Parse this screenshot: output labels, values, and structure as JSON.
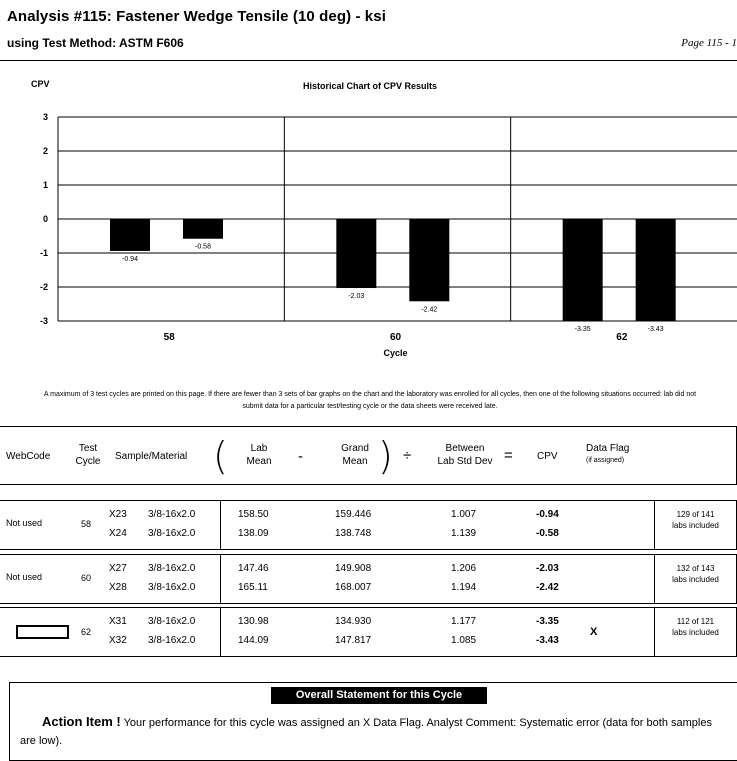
{
  "header": {
    "title": "Analysis #115: Fastener Wedge Tensile (10 deg) - ksi",
    "method": "using Test Method: ASTM F606",
    "page": "Page 115 - 1"
  },
  "chart_data": {
    "type": "bar",
    "title": "Historical Chart of CPV Results",
    "ylabel": "CPV",
    "xlabel": "Cycle",
    "ylim": [
      -3,
      3
    ],
    "yticks": [
      "3",
      "2",
      "1",
      "0",
      "-1",
      "-2",
      "-3"
    ],
    "categories": [
      "58",
      "60",
      "62"
    ],
    "values": [
      [
        -0.94,
        -0.58
      ],
      [
        -2.03,
        -2.42
      ],
      [
        -3.35,
        -3.43
      ]
    ],
    "value_labels": [
      [
        "-0.94",
        "-0.58"
      ],
      [
        "-2.03",
        "-2.42"
      ],
      [
        "-3.35",
        "-3.43"
      ]
    ],
    "grid": true,
    "bar_color": "#000000"
  },
  "note": "A maximum of 3 test cycles are printed on this page.  If there are fewer than 3 sets of bar graphs on the chart and the laboratory was enrolled for all cycles, then one of the following situations occurred: lab did not submit data for a particular test/testing cycle or the data sheets were received late.",
  "table": {
    "headers": {
      "webcode": "WebCode",
      "test_cycle": [
        "Test",
        "Cycle"
      ],
      "sample": "Sample/Material",
      "lab_mean": [
        "Lab",
        "Mean"
      ],
      "minus": "-",
      "grand_mean": [
        "Grand",
        "Mean"
      ],
      "divide": "÷",
      "between_sd": [
        "Between",
        "Lab Std Dev"
      ],
      "equals": "=",
      "cpv": "CPV",
      "flag": [
        "Data Flag",
        "(if assigned)"
      ]
    },
    "rows": [
      {
        "webcode": "Not used",
        "cycle": "58",
        "samples": [
          {
            "id": "X23",
            "material": "3/8-16x2.0",
            "lab_mean": "158.50",
            "grand_mean": "159.446",
            "sd": "1.007",
            "cpv": "-0.94",
            "flag": ""
          },
          {
            "id": "X24",
            "material": "3/8-16x2.0",
            "lab_mean": "138.09",
            "grand_mean": "138.748",
            "sd": "1.139",
            "cpv": "-0.58",
            "flag": ""
          }
        ],
        "labs": [
          "129 of 141",
          "labs included"
        ]
      },
      {
        "webcode": "Not used",
        "cycle": "60",
        "samples": [
          {
            "id": "X27",
            "material": "3/8-16x2.0",
            "lab_mean": "147.46",
            "grand_mean": "149.908",
            "sd": "1.206",
            "cpv": "-2.03",
            "flag": ""
          },
          {
            "id": "X28",
            "material": "3/8-16x2.0",
            "lab_mean": "165.11",
            "grand_mean": "168.007",
            "sd": "1.194",
            "cpv": "-2.42",
            "flag": ""
          }
        ],
        "labs": [
          "132 of 143",
          "labs included"
        ]
      },
      {
        "webcode": "",
        "cycle": "62",
        "samples": [
          {
            "id": "X31",
            "material": "3/8-16x2.0",
            "lab_mean": "130.98",
            "grand_mean": "134.930",
            "sd": "1.177",
            "cpv": "-3.35",
            "flag": "X"
          },
          {
            "id": "X32",
            "material": "3/8-16x2.0",
            "lab_mean": "144.09",
            "grand_mean": "147.817",
            "sd": "1.085",
            "cpv": "-3.43",
            "flag": ""
          }
        ],
        "labs": [
          "112 of 121",
          "labs included"
        ]
      }
    ]
  },
  "statement": {
    "title": "Overall Statement for this Cycle",
    "action": "Action Item !",
    "text": "Your performance for this cycle was assigned an X Data Flag.  Analyst Comment: Systematic error (data for both samples are low)."
  }
}
